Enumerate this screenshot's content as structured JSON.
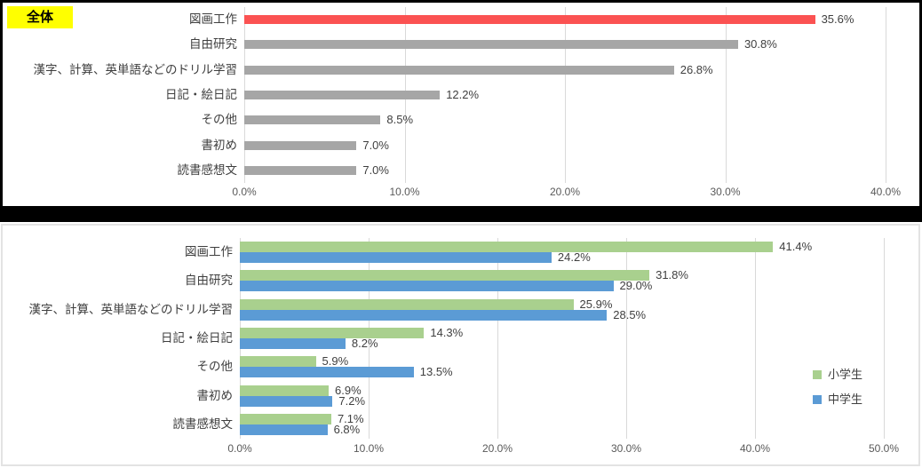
{
  "section_header": {
    "label": "全体",
    "background": "#ffff00",
    "text_color": "#000000"
  },
  "chart_data": [
    {
      "id": "overall",
      "type": "bar",
      "orientation": "horizontal",
      "section_label": "全体",
      "categories": [
        "図画工作",
        "自由研究",
        "漢字、計算、英単語などのドリル学習",
        "日記・絵日記",
        "その他",
        "書初め",
        "読書感想文"
      ],
      "values": [
        35.6,
        30.8,
        26.8,
        12.2,
        8.5,
        7.0,
        7.0
      ],
      "value_labels": [
        "35.6%",
        "30.8%",
        "26.8%",
        "12.2%",
        "8.5%",
        "7.0%",
        "7.0%"
      ],
      "bar_colors": [
        "#fb5252",
        "#a6a6a6",
        "#a6a6a6",
        "#a6a6a6",
        "#a6a6a6",
        "#a6a6a6",
        "#a6a6a6"
      ],
      "xlim": [
        0,
        40
      ],
      "x_tick_labels": [
        "0.0%",
        "10.0%",
        "20.0%",
        "30.0%",
        "40.0%"
      ],
      "grid": true,
      "legend": null
    },
    {
      "id": "grade",
      "type": "bar",
      "orientation": "horizontal",
      "categories": [
        "図画工作",
        "自由研究",
        "漢字、計算、英単語などのドリル学習",
        "日記・絵日記",
        "その他",
        "書初め",
        "読書感想文"
      ],
      "series": [
        {
          "name": "小学生",
          "color": "#a9d08e",
          "values": [
            41.4,
            31.8,
            25.9,
            14.3,
            5.9,
            6.9,
            7.1
          ],
          "value_labels": [
            "41.4%",
            "31.8%",
            "25.9%",
            "14.3%",
            "5.9%",
            "6.9%",
            "7.1%"
          ]
        },
        {
          "name": "中学生",
          "color": "#5b9bd5",
          "values": [
            24.2,
            29.0,
            28.5,
            8.2,
            13.5,
            7.2,
            6.8
          ],
          "value_labels": [
            "24.2%",
            "29.0%",
            "28.5%",
            "8.2%",
            "13.5%",
            "7.2%",
            "6.8%"
          ]
        }
      ],
      "xlim": [
        0,
        50
      ],
      "x_tick_labels": [
        "0.0%",
        "10.0%",
        "20.0%",
        "30.0%",
        "40.0%",
        "50.0%"
      ],
      "grid": true,
      "legend": {
        "position": "right",
        "entries": [
          {
            "label": "小学生",
            "color": "#a9d08e"
          },
          {
            "label": "中学生",
            "color": "#5b9bd5"
          }
        ]
      }
    }
  ],
  "style_colors": {
    "highlight_bar": "#fb5252",
    "default_bar": "#a6a6a6",
    "elementary_bar": "#a9d08e",
    "junior_high_bar": "#5b9bd5",
    "gridline": "#d9d9d9",
    "label_text": "#3f3f3f",
    "tick_text": "#595959",
    "separator": "#000000",
    "panel_border": "#e3e3e3"
  }
}
